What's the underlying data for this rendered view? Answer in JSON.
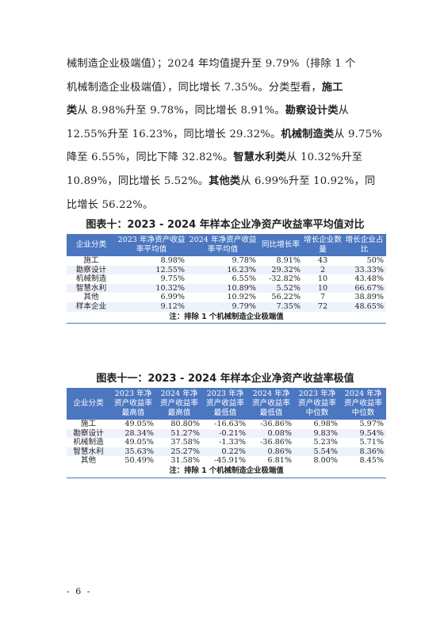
{
  "paragraph": {
    "l1": "械制造企业极端值）；2024 年均值提升至 9.79%（排除 1 个",
    "l2": "机械制造企业极端值），同比增长 7.35%。分类型看，",
    "l2b": "施工",
    "l3a": "类",
    "l3": "从 8.98%升至 9.78%，同比增长 8.91%。",
    "l3b": "勘察设计类",
    "l3c": "从",
    "l4": "12.55%升至 16.23%，同比增长 29.32%。",
    "l4b": "机械制造类",
    "l4c": "从 9.75%",
    "l5": "降至 6.55%，同比下降 32.82%。",
    "l5b": "智慧水利类",
    "l5c": "从 10.32%升至",
    "l6": "10.89%，同比增长 5.52%。",
    "l6b": "其他类",
    "l6c": "从 6.99%升至 10.92%，同",
    "l7": "比增长 56.22%。"
  },
  "table1": {
    "caption": "图表十：2023 - 2024 年样本企业净资产收益率平均值对比",
    "headers": [
      "企业分类",
      "2023 年净资产收益率平均值",
      "2024 年净资产收益率平均值",
      "同比增长率",
      "增长企业数量",
      "增长企业占比"
    ],
    "rows": [
      [
        "施工",
        "8.98%",
        "9.78%",
        "8.91%",
        "43",
        "50%"
      ],
      [
        "勘察设计",
        "12.55%",
        "16.23%",
        "29.32%",
        "2",
        "33.33%"
      ],
      [
        "机械制造",
        "9.75%",
        "6.55%",
        "-32.82%",
        "10",
        "43.48%"
      ],
      [
        "智慧水利",
        "10.32%",
        "10.89%",
        "5.52%",
        "10",
        "66.67%"
      ],
      [
        "其他",
        "6.99%",
        "10.92%",
        "56.22%",
        "7",
        "38.89%"
      ],
      [
        "样本企业",
        "9.12%",
        "9.79%",
        "7.35%",
        "72",
        "48.65%"
      ]
    ],
    "note": "注：排除 1 个机械制造企业极端值"
  },
  "table2": {
    "caption": "图表十一：2023 - 2024 年样本企业净资产收益率极值",
    "headers": [
      "企业分类",
      "2023 年净资产收益率最高值",
      "2024 年净资产收益率最高值",
      "2023 年净资产收益率最低值",
      "2024 年净资产收益率最低值",
      "2023 年净资产收益率中位数",
      "2024 年净资产收益率中位数"
    ],
    "rows": [
      [
        "施工",
        "49.05%",
        "80.80%",
        "-16.63%",
        "-36.86%",
        "6.98%",
        "5.97%"
      ],
      [
        "勘察设计",
        "28.34%",
        "51.27%",
        "-0.21%",
        "0.08%",
        "9.83%",
        "9.54%"
      ],
      [
        "机械制造",
        "49.05%",
        "37.58%",
        "-1.33%",
        "-36.86%",
        "5.23%",
        "5.71%"
      ],
      [
        "智慧水利",
        "35.63%",
        "25.27%",
        "0.22%",
        "0.86%",
        "5.54%",
        "8.36%"
      ],
      [
        "其他",
        "50.49%",
        "31.58%",
        "-45.91%",
        "6.81%",
        "8.00%",
        "8.45%"
      ]
    ],
    "note": "注：排除 1 个机械制造企业极端值"
  },
  "page_number": "- 6 -"
}
